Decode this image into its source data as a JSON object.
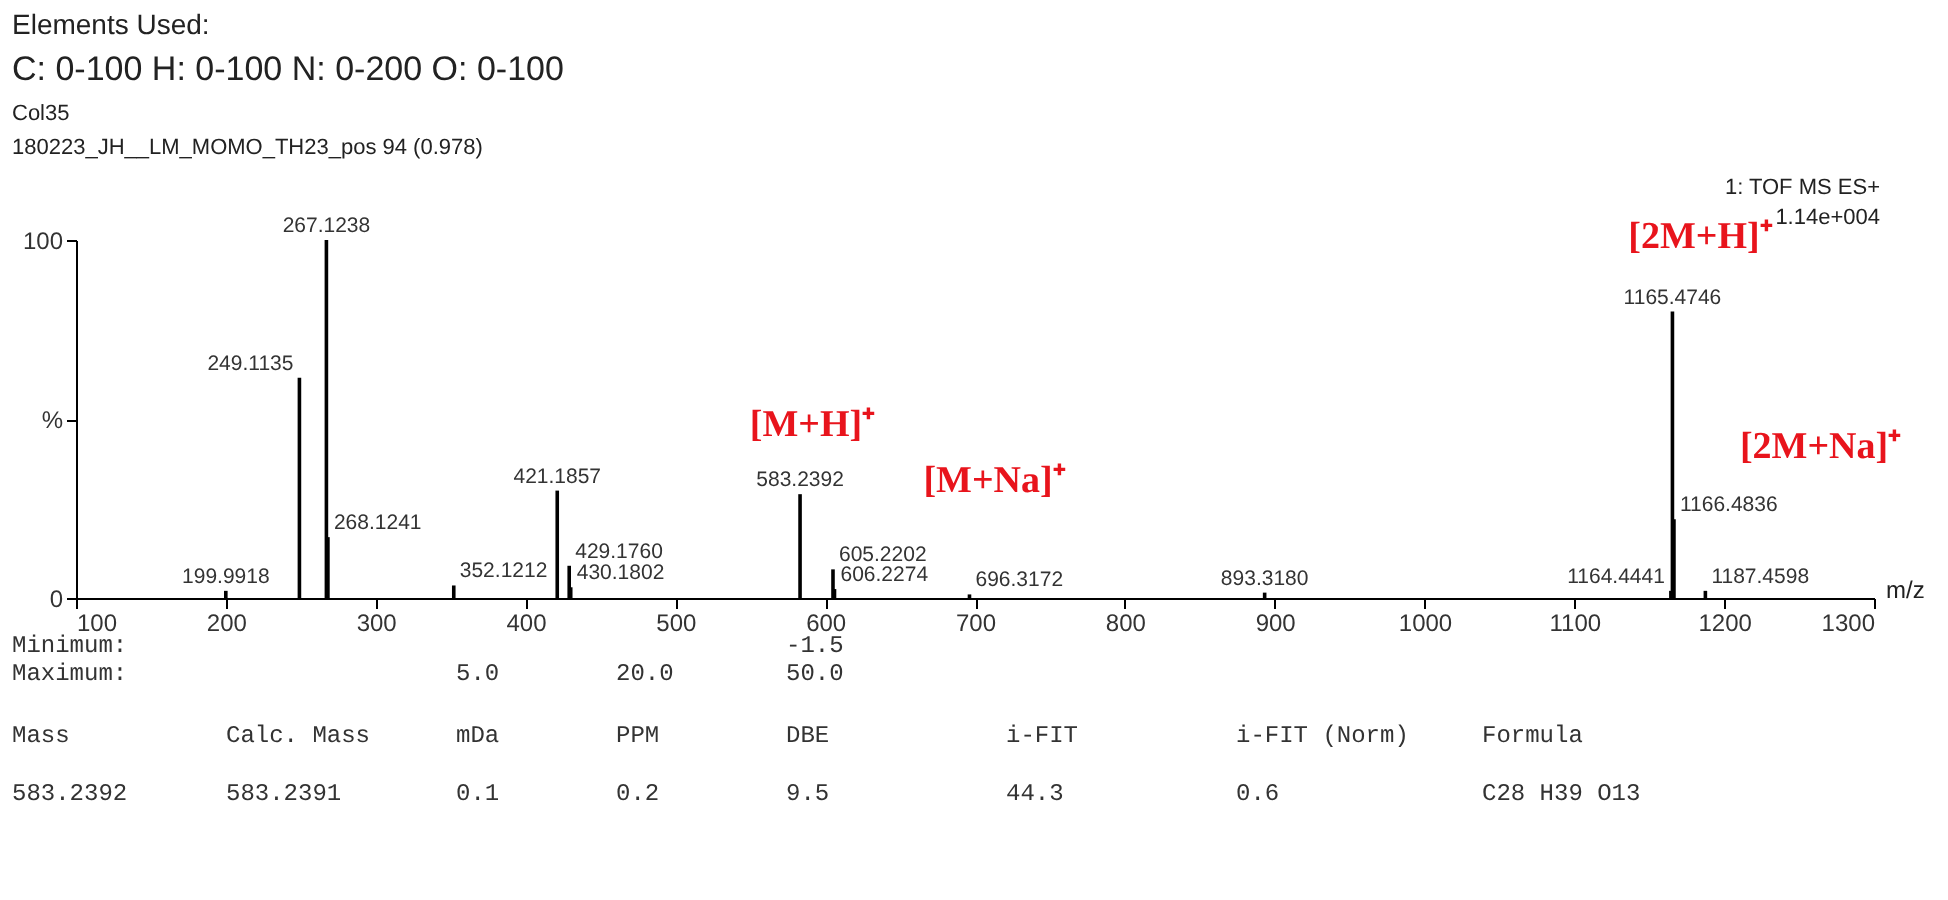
{
  "chart_data": {
    "type": "bar",
    "title": "Elements Used:",
    "subtitle": "C: 0-100 H: 0-100 N: 0-200 O: 0-100",
    "xlabel": "m/z",
    "x": [
      199.9918,
      249.1135,
      267.1238,
      268.1241,
      352.1212,
      421.1857,
      429.176,
      430.1802,
      583.2392,
      605.2202,
      606.2274,
      696.3172,
      893.318,
      1164.4441,
      1165.4746,
      1166.4836,
      1187.4598
    ],
    "values": [
      2,
      61.5,
      100,
      17,
      3.5,
      30,
      9,
      3,
      29,
      8,
      2.5,
      1,
      1.5,
      2,
      80,
      22,
      2
    ],
    "color": "#000000",
    "xlim": [
      100,
      1300
    ],
    "xticks": [
      100,
      200,
      300,
      400,
      500,
      600,
      700,
      800,
      900,
      1000,
      1100,
      1200,
      1300
    ],
    "ylim": [
      0,
      100
    ],
    "yticks": [
      0,
      {
        "value": 50,
        "label": "%"
      },
      100
    ],
    "grid": false,
    "annotations": [
      {
        "text": "199.9918",
        "x": 199.9918,
        "y": 2
      },
      {
        "text": "249.1135",
        "x": 249.1135,
        "y": 61.5
      },
      {
        "text": "267.1238",
        "x": 267.1238,
        "y": 100
      },
      {
        "text": "268.1241",
        "x": 268.1241,
        "y": 17
      },
      {
        "text": "352.1212",
        "x": 352.1212,
        "y": 3.5
      },
      {
        "text": "421.1857",
        "x": 421.1857,
        "y": 30
      },
      {
        "text": "429.1760",
        "x": 429.176,
        "y": 9
      },
      {
        "text": "430.1802",
        "x": 430.1802,
        "y": 3
      },
      {
        "text": "583.2392",
        "x": 583.2392,
        "y": 29
      },
      {
        "text": "605.2202",
        "x": 605.2202,
        "y": 8
      },
      {
        "text": "606.2274",
        "x": 606.2274,
        "y": 2.5
      },
      {
        "text": "696.3172",
        "x": 696.3172,
        "y": 1
      },
      {
        "text": "893.3180",
        "x": 893.318,
        "y": 1.5
      },
      {
        "text": "1164.4441",
        "x": 1164.4441,
        "y": 2
      },
      {
        "text": "1165.4746",
        "x": 1165.4746,
        "y": 80
      },
      {
        "text": "1166.4836",
        "x": 1166.4836,
        "y": 22
      },
      {
        "text": "1187.4598",
        "x": 1187.4598,
        "y": 2
      },
      "[M+H]⁺",
      "[M+Na]⁺",
      "[2M+H]⁺",
      "[2M+Na]⁺",
      "Col35",
      "180223_JH__LM_MOMO_TH23_pos 94 (0.978)",
      "1: TOF MS ES+",
      "1.14e+004",
      "Minimum:",
      "-1.5",
      "Maximum:",
      "5.0",
      "20.0",
      "50.0",
      "Mass",
      "Calc. Mass",
      "mDa",
      "PPM",
      "DBE",
      "i-FIT",
      "i-FIT (Norm)",
      "Formula",
      "583.2392",
      "583.2391",
      "0.1",
      "0.2",
      "9.5",
      "44.3",
      "0.6",
      "C28 H39 O13"
    ]
  }
}
